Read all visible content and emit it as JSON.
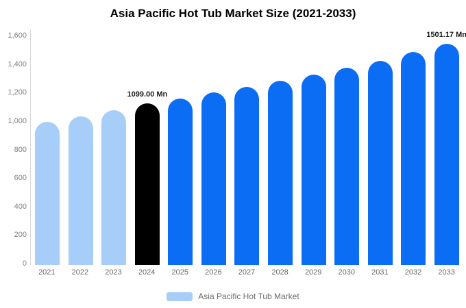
{
  "title": "Asia Pacific Hot Tub Market Size (2021-2033)",
  "colors": {
    "historical_bar": "#a7cdf9",
    "base_year_bar": "#000000",
    "forecast_bar": "#0b6df4",
    "axis_text": "#808080",
    "annotation_text": "#1a1a1a"
  },
  "legend": {
    "label": "Asia Pacific Hot Tub Market",
    "swatch_color": "#a7cdf9"
  },
  "chart_data": {
    "type": "bar",
    "title": "Asia Pacific Hot Tub Market Size (2021-2033)",
    "categories": [
      "2021",
      "2022",
      "2023",
      "2024",
      "2025",
      "2026",
      "2027",
      "2028",
      "2029",
      "2030",
      "2031",
      "2032",
      "2033"
    ],
    "values": [
      970,
      1010,
      1050,
      1099,
      1130,
      1170,
      1210,
      1252,
      1295,
      1340,
      1388,
      1445,
      1501.17
    ],
    "unit": "Mn",
    "ylabel": "",
    "xlabel": "",
    "ylim": [
      0,
      1600
    ],
    "ytick_step": 200,
    "ytick_labels": [
      "1,600",
      "1,400",
      "1,200",
      "1,000",
      "800",
      "600",
      "400",
      "200",
      "0"
    ],
    "grid": false,
    "legend_position": "bottom",
    "legend_entries": [
      "Asia Pacific Hot Tub Market"
    ],
    "bar_colors": [
      "#a7cdf9",
      "#a7cdf9",
      "#a7cdf9",
      "#000000",
      "#0b6df4",
      "#0b6df4",
      "#0b6df4",
      "#0b6df4",
      "#0b6df4",
      "#0b6df4",
      "#0b6df4",
      "#0b6df4",
      "#0b6df4"
    ],
    "annotations": [
      {
        "index": 3,
        "text": "1099.00 Mn"
      },
      {
        "index": 12,
        "text": "1501.17 Mn"
      }
    ]
  }
}
